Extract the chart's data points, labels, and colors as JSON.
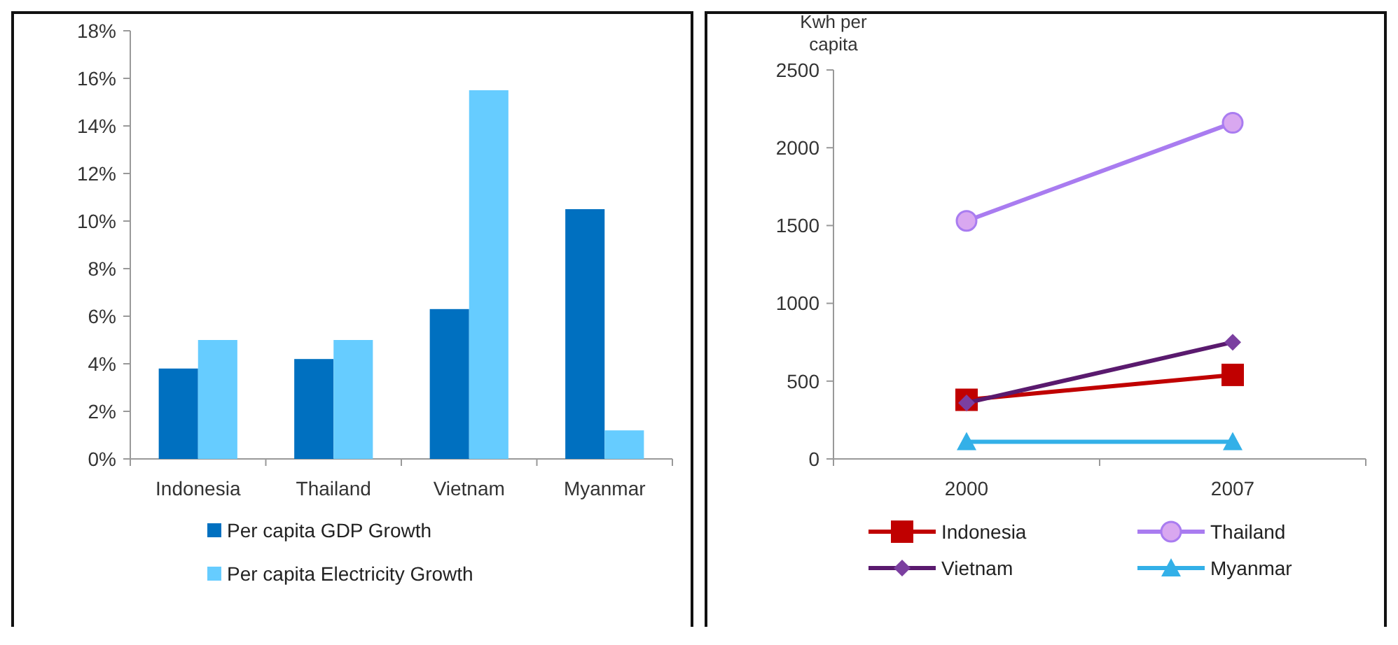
{
  "chart_data": [
    {
      "type": "bar",
      "categories": [
        "Indonesia",
        "Thailand",
        "Vietnam",
        "Myanmar"
      ],
      "series": [
        {
          "name": "Per capita GDP Growth",
          "color": "#0070c0",
          "values": [
            3.8,
            4.2,
            6.3,
            10.5
          ]
        },
        {
          "name": "Per capita Electricity Growth",
          "color": "#66ccff",
          "values": [
            5.0,
            5.0,
            15.5,
            1.2
          ]
        }
      ],
      "ylim": [
        0,
        18
      ],
      "yticks": [
        {
          "value": 0,
          "label": "0%"
        },
        {
          "value": 2,
          "label": "2%"
        },
        {
          "value": 4,
          "label": "4%"
        },
        {
          "value": 6,
          "label": "6%"
        },
        {
          "value": 8,
          "label": "8%"
        },
        {
          "value": 10,
          "label": "10%"
        },
        {
          "value": 12,
          "label": "12%"
        },
        {
          "value": 14,
          "label": "14%"
        },
        {
          "value": 16,
          "label": "16%"
        },
        {
          "value": 18,
          "label": "18%"
        }
      ],
      "grid": false,
      "legend": "bottom"
    },
    {
      "type": "line",
      "categories": [
        "2000",
        "2007"
      ],
      "ylabel": "Kwh per capita",
      "series": [
        {
          "name": "Indonesia",
          "color": "#c00000",
          "marker": "square",
          "values": [
            380,
            540
          ]
        },
        {
          "name": "Thailand",
          "color": "#a97cf0",
          "marker": "circle",
          "values": [
            1530,
            2160
          ]
        },
        {
          "name": "Vietnam",
          "color": "#5a1a6e",
          "marker": "diamond",
          "values": [
            360,
            750
          ]
        },
        {
          "name": "Myanmar",
          "color": "#33b0e8",
          "marker": "triangle",
          "values": [
            110,
            110
          ]
        }
      ],
      "ylim": [
        0,
        2500
      ],
      "yticks": [
        0,
        500,
        1000,
        1500,
        2000,
        2500
      ],
      "grid": false,
      "legend": "bottom",
      "line_style": "solid"
    }
  ]
}
